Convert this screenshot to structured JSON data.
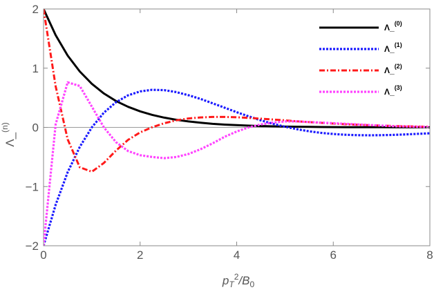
{
  "chart_data": {
    "type": "line",
    "title": "",
    "xlabel_base": "p",
    "xlabel_sub": "T",
    "xlabel_sup": "2",
    "xlabel_tail": "/B",
    "xlabel_tail_sub": "0",
    "ylabel_base": "Λ_",
    "ylabel_sup": "(n)",
    "xlim": [
      0,
      8
    ],
    "ylim": [
      -2,
      2
    ],
    "x_ticks": [
      0,
      2,
      4,
      6,
      8
    ],
    "x_tick_labels": [
      "0",
      "2",
      "4",
      "6",
      "8"
    ],
    "y_ticks": [
      -2,
      -1,
      0,
      1,
      2
    ],
    "y_tick_labels": [
      "−2",
      "−1",
      "0",
      "1",
      "2"
    ],
    "grid": false,
    "zero_line": true,
    "legend_position": "top-right",
    "x": [
      0,
      0.25,
      0.5,
      0.75,
      1,
      1.25,
      1.5,
      1.75,
      2,
      2.25,
      2.5,
      2.75,
      3,
      3.25,
      3.5,
      3.75,
      4,
      4.25,
      4.5,
      4.75,
      5,
      5.25,
      5.5,
      5.75,
      6,
      6.25,
      6.5,
      6.75,
      7,
      7.25,
      7.5,
      7.75,
      8
    ],
    "series": [
      {
        "name": "Λ_",
        "name_sup": "(0)",
        "color": "#000000",
        "dash": "solid",
        "values": [
          2.0,
          1.558,
          1.213,
          0.945,
          0.736,
          0.573,
          0.446,
          0.348,
          0.271,
          0.211,
          0.164,
          0.128,
          0.1,
          0.078,
          0.06,
          0.047,
          0.037,
          0.029,
          0.022,
          0.017,
          0.013,
          0.01,
          0.008,
          0.006,
          0.005,
          0.004,
          0.003,
          0.002,
          0.002,
          0.001,
          0.001,
          0.001,
          0.001
        ]
      },
      {
        "name": "Λ_",
        "name_sup": "(1)",
        "color": "#1a1aff",
        "dash": "dotted",
        "values": [
          -2.0,
          -1.308,
          -0.758,
          -0.331,
          -0.0,
          0.248,
          0.424,
          0.541,
          0.608,
          0.634,
          0.628,
          0.596,
          0.544,
          0.48,
          0.407,
          0.332,
          0.257,
          0.185,
          0.119,
          0.061,
          0.01,
          -0.032,
          -0.066,
          -0.093,
          -0.112,
          -0.125,
          -0.132,
          -0.134,
          -0.132,
          -0.127,
          -0.119,
          -0.11,
          -0.1
        ]
      },
      {
        "name": "Λ_",
        "name_sup": "(2)",
        "color": "#ff1a1a",
        "dash": "dashdot",
        "values": [
          2.0,
          0.695,
          -0.202,
          -0.674,
          -0.75,
          -0.602,
          -0.393,
          -0.211,
          -0.085,
          0.002,
          0.07,
          0.119,
          0.15,
          0.168,
          0.176,
          0.176,
          0.17,
          0.16,
          0.147,
          0.133,
          0.118,
          0.103,
          0.089,
          0.076,
          0.064,
          0.053,
          0.044,
          0.036,
          0.029,
          0.023,
          0.018,
          0.014,
          0.011
        ]
      },
      {
        "name": "Λ_",
        "name_sup": "(3)",
        "color": "#ff44ff",
        "dash": "dotted",
        "values": [
          -2.0,
          0.05,
          0.76,
          0.7,
          0.35,
          0.0,
          -0.25,
          -0.4,
          -0.47,
          -0.5,
          -0.52,
          -0.5,
          -0.45,
          -0.37,
          -0.27,
          -0.16,
          -0.07,
          0.0,
          0.05,
          0.08,
          0.1,
          0.1,
          0.09,
          0.08,
          0.07,
          0.06,
          0.05,
          0.04,
          0.03,
          0.02,
          0.015,
          0.01,
          0.005
        ]
      }
    ]
  }
}
